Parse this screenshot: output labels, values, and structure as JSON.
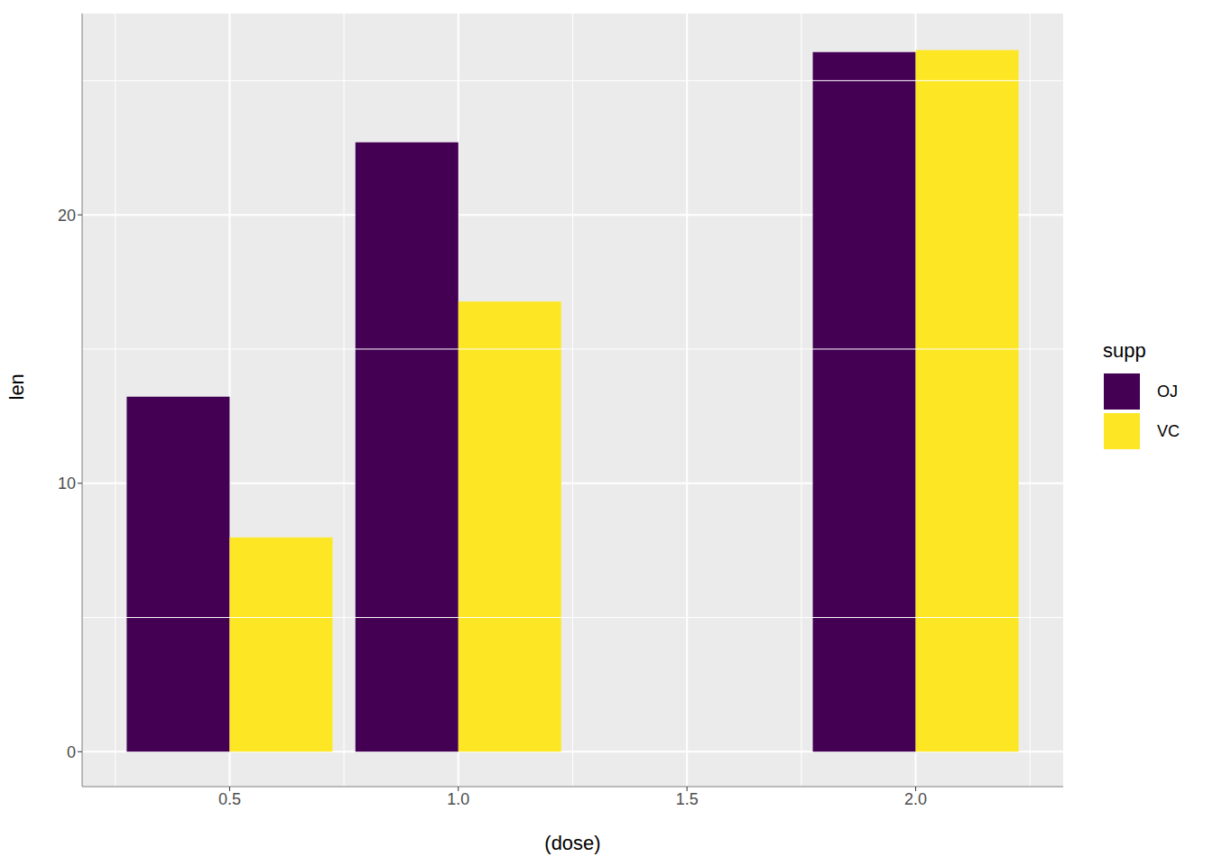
{
  "chart_data": {
    "type": "bar",
    "x_label": "(dose)",
    "y_label": "len",
    "legend_title": "supp",
    "x": [
      0.5,
      1.0,
      2.0
    ],
    "series": [
      {
        "name": "OJ",
        "color": "#440154",
        "values": [
          13.23,
          22.7,
          26.06
        ]
      },
      {
        "name": "VC",
        "color": "#FDE725",
        "values": [
          7.98,
          16.77,
          26.14
        ]
      }
    ],
    "xlim": [
      0.1775,
      2.3225
    ],
    "xticks": [
      0.5,
      {
        "value": 1,
        "label": "1.0"
      },
      1.5,
      {
        "value": 2,
        "label": "2.0"
      }
    ],
    "ylim": [
      -1.3,
      27.5
    ],
    "yticks": [
      0,
      10,
      20
    ],
    "grid": true,
    "legend": "right"
  }
}
